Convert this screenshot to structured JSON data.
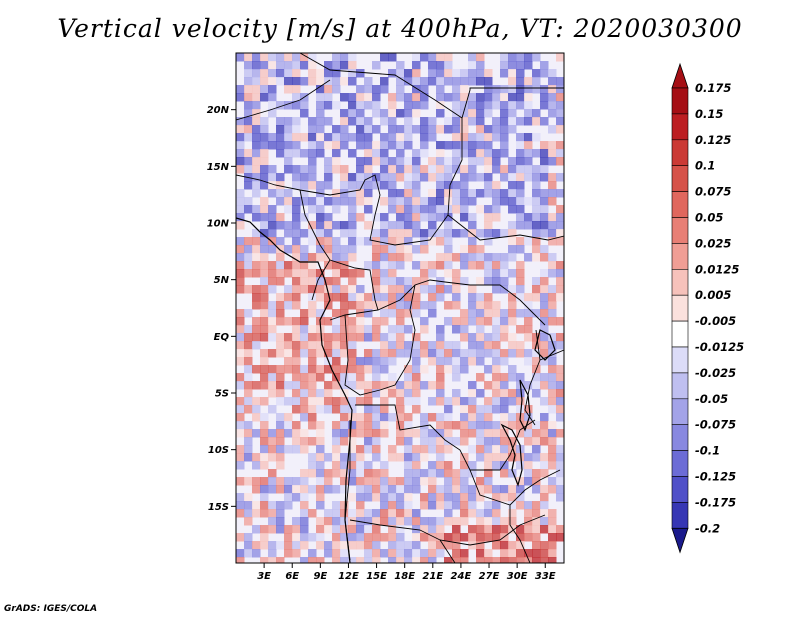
{
  "title": "Vertical velocity [m/s] at 400hPa, VT: 2020030300",
  "credit": "GrADS: IGES/COLA",
  "map": {
    "variable": "Vertical velocity",
    "units": "m/s",
    "level": "400hPa",
    "valid_time": "2020030300",
    "lon_range": [
      0,
      35
    ],
    "lat_range": [
      -20,
      25
    ],
    "lat_ticks": [
      {
        "value": 20,
        "label": "20N"
      },
      {
        "value": 15,
        "label": "15N"
      },
      {
        "value": 10,
        "label": "10N"
      },
      {
        "value": 5,
        "label": "5N"
      },
      {
        "value": 0,
        "label": "EQ"
      },
      {
        "value": -5,
        "label": "5S"
      },
      {
        "value": -10,
        "label": "10S"
      },
      {
        "value": -15,
        "label": "15S"
      }
    ],
    "lon_ticks": [
      {
        "value": 3,
        "label": "3E"
      },
      {
        "value": 6,
        "label": "6E"
      },
      {
        "value": 9,
        "label": "9E"
      },
      {
        "value": 12,
        "label": "12E"
      },
      {
        "value": 15,
        "label": "15E"
      },
      {
        "value": 18,
        "label": "18E"
      },
      {
        "value": 21,
        "label": "21E"
      },
      {
        "value": 24,
        "label": "24E"
      },
      {
        "value": 27,
        "label": "27E"
      },
      {
        "value": 30,
        "label": "30E"
      },
      {
        "value": 33,
        "label": "33E"
      }
    ]
  },
  "colorbar": {
    "levels": [
      {
        "label": "0.175",
        "color": "#a50f15"
      },
      {
        "label": "0.15",
        "color": "#bc1e22"
      },
      {
        "label": "0.125",
        "color": "#cb3a35"
      },
      {
        "label": "0.1",
        "color": "#d65249"
      },
      {
        "label": "0.075",
        "color": "#e0675d"
      },
      {
        "label": "0.05",
        "color": "#e87f75"
      },
      {
        "label": "0.025",
        "color": "#f09e95"
      },
      {
        "label": "0.0125",
        "color": "#f7c2bb"
      },
      {
        "label": "0.005",
        "color": "#fbe1dd"
      },
      {
        "label": "-0.005",
        "color": "#ffffff"
      },
      {
        "label": "-0.0125",
        "color": "#dcdcf8"
      },
      {
        "label": "-0.025",
        "color": "#bfbff0"
      },
      {
        "label": "-0.05",
        "color": "#a3a3e8"
      },
      {
        "label": "-0.075",
        "color": "#8888e0"
      },
      {
        "label": "-0.1",
        "color": "#6c6cd6"
      },
      {
        "label": "-0.125",
        "color": "#5050c8"
      },
      {
        "label": "-0.175",
        "color": "#3636b4"
      },
      {
        "label": "-0.2",
        "color": "#2020a0"
      }
    ],
    "top_cap_color": "#a50f15",
    "bottom_cap_color": "#1a1a8c"
  }
}
